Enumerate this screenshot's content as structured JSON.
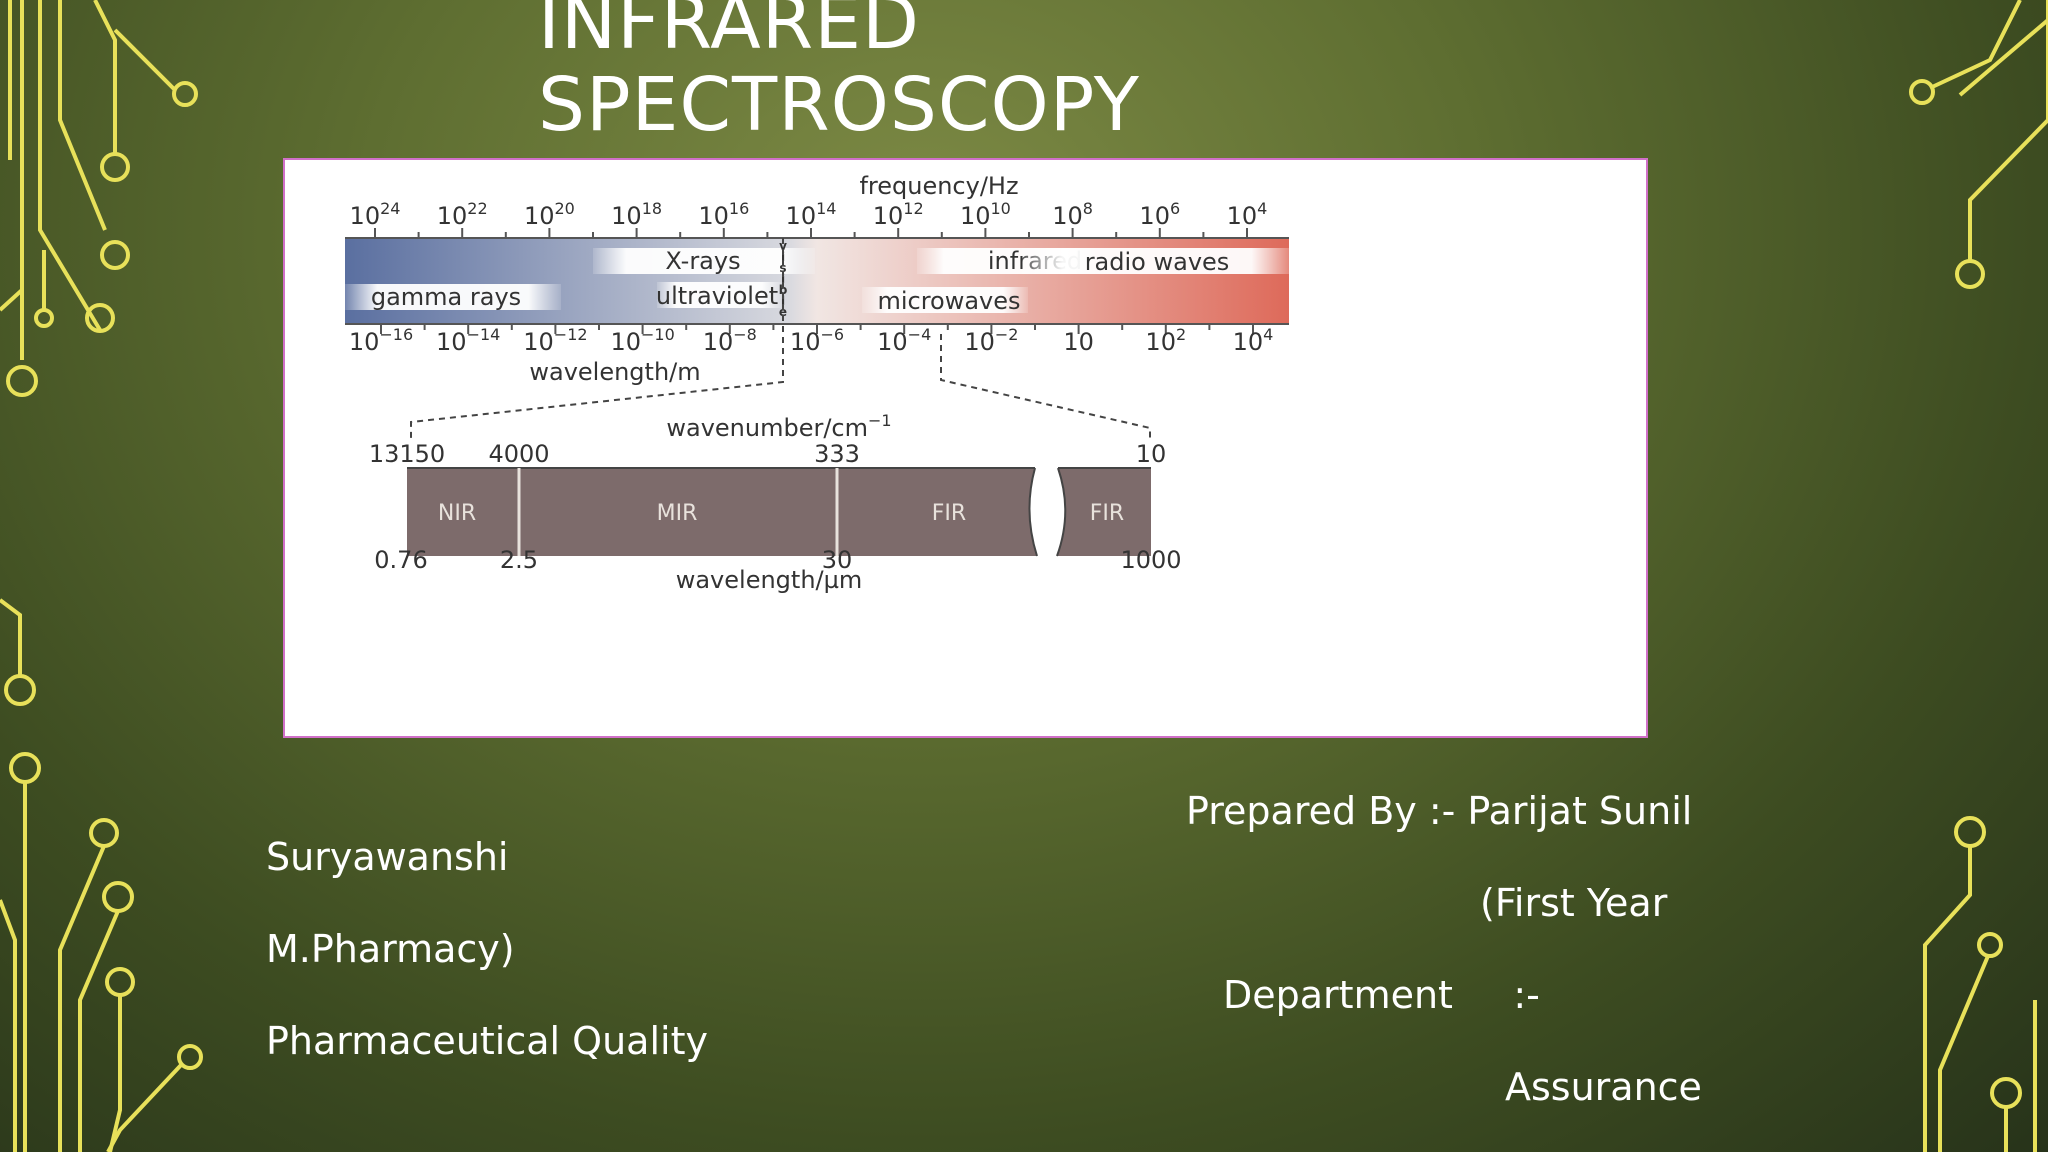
{
  "slide": {
    "title_line1": "INFRARED",
    "title_line2": "SPECTROSCOPY",
    "left_text": [
      "Suryawanshi",
      "M.Pharmacy)",
      "Pharmaceutical Quality"
    ],
    "right_text": [
      "Prepared By :- Parijat Sunil",
      "(First Year",
      "Department     :-",
      "Assurance"
    ]
  },
  "spectrum": {
    "frequency_label": "frequency/Hz",
    "frequency_ticks": [
      {
        "base": "10",
        "exp": "24"
      },
      {
        "base": "10",
        "exp": "22"
      },
      {
        "base": "10",
        "exp": "20"
      },
      {
        "base": "10",
        "exp": "18"
      },
      {
        "base": "10",
        "exp": "16"
      },
      {
        "base": "10",
        "exp": "14"
      },
      {
        "base": "10",
        "exp": "12"
      },
      {
        "base": "10",
        "exp": "10"
      },
      {
        "base": "10",
        "exp": "8"
      },
      {
        "base": "10",
        "exp": "6"
      },
      {
        "base": "10",
        "exp": "4"
      }
    ],
    "wavelength_label": "wavelength/m",
    "wavelength_ticks": [
      {
        "base": "10",
        "exp": "−16"
      },
      {
        "base": "10",
        "exp": "−14"
      },
      {
        "base": "10",
        "exp": "−12"
      },
      {
        "base": "10",
        "exp": "−10"
      },
      {
        "base": "10",
        "exp": "−8"
      },
      {
        "base": "10",
        "exp": "−6"
      },
      {
        "base": "10",
        "exp": "−4"
      },
      {
        "base": "10",
        "exp": "−2"
      },
      {
        "base": "10",
        "exp": ""
      },
      {
        "base": "10",
        "exp": "2"
      },
      {
        "base": "10",
        "exp": "4"
      }
    ],
    "regions": {
      "xrays": "X-rays",
      "infrared": "infrared",
      "radio": "radio waves",
      "gamma": "gamma rays",
      "uv": "ultraviolet",
      "microwaves": "microwaves",
      "visible_letters": [
        "v",
        "i",
        "s",
        "i",
        "b",
        "l",
        "e"
      ]
    },
    "colors": {
      "blue": "#5a6fa0",
      "red": "#de6a5a",
      "ir_bar": "#7d6b6b"
    }
  },
  "ir_detail": {
    "wavenumber_label": "wavenumber/cm",
    "wavenumber_exp": "−1",
    "wavenumber_ticks": [
      "13150",
      "4000",
      "333",
      "10"
    ],
    "segments": [
      "NIR",
      "MIR",
      "FIR",
      "FIR"
    ],
    "wavelength_ticks": [
      "0.76",
      "2.5",
      "30",
      "1000"
    ],
    "wavelength_label": "wavelength/µm"
  }
}
